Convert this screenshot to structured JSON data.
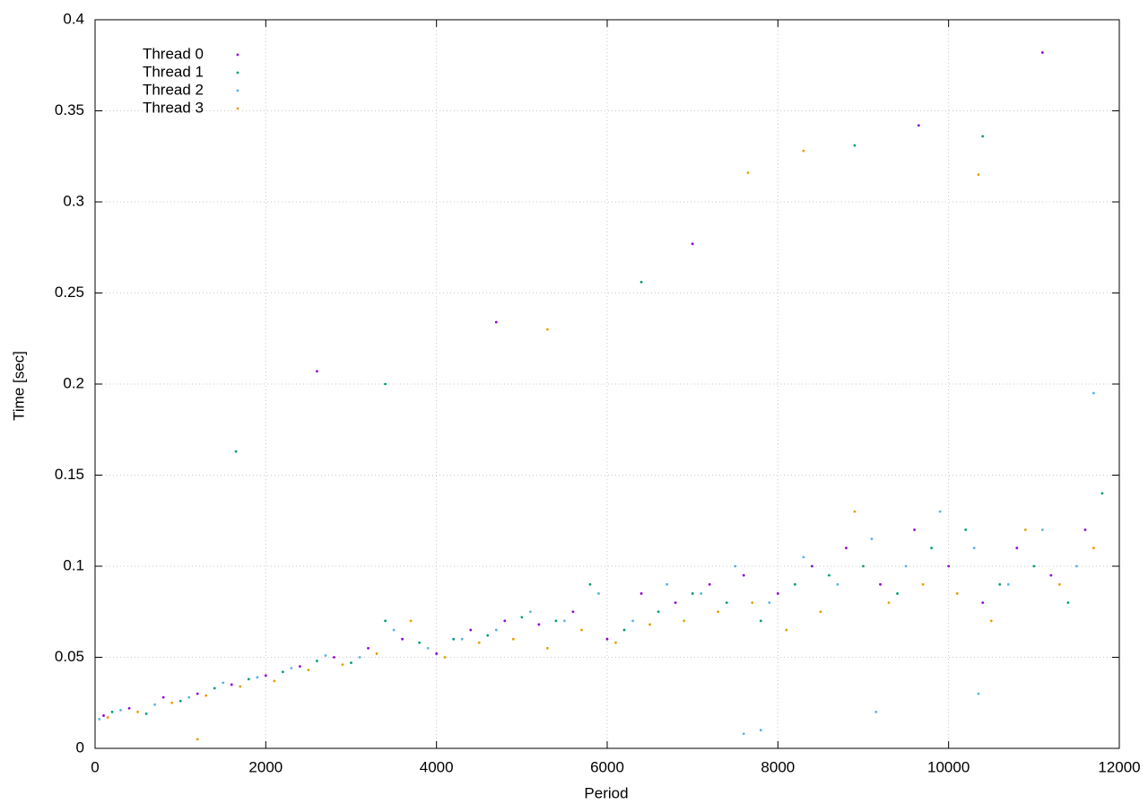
{
  "chart_data": {
    "type": "scatter",
    "x_label": "Period",
    "y_label": "Time [sec]",
    "xlim": [
      0,
      12000
    ],
    "ylim": [
      0,
      0.4
    ],
    "xticks": [
      0,
      2000,
      4000,
      6000,
      8000,
      10000,
      12000
    ],
    "yticks": [
      0,
      0.05,
      0.1,
      0.15,
      0.2,
      0.25,
      0.3,
      0.35,
      0.4
    ],
    "grid": true,
    "legend": "top-left",
    "series": [
      {
        "name": "Thread 0",
        "color": "#9400d3",
        "x": [
          100,
          400,
          800,
          1200,
          1600,
          2000,
          2400,
          2800,
          3200,
          3600,
          4000,
          4400,
          4800,
          5200,
          5600,
          6000,
          6400,
          6800,
          7200,
          7600,
          8000,
          8400,
          8800,
          9200,
          9600,
          10000,
          10400,
          10800,
          11200,
          11600,
          2600,
          4700,
          7000,
          9650,
          11100
        ],
        "y": [
          0.018,
          0.022,
          0.028,
          0.03,
          0.035,
          0.04,
          0.045,
          0.05,
          0.055,
          0.06,
          0.052,
          0.065,
          0.07,
          0.068,
          0.075,
          0.06,
          0.085,
          0.08,
          0.09,
          0.095,
          0.085,
          0.1,
          0.11,
          0.09,
          0.12,
          0.1,
          0.08,
          0.11,
          0.095,
          0.12,
          0.207,
          0.234,
          0.277,
          0.342,
          0.382
        ]
      },
      {
        "name": "Thread 1",
        "color": "#009e73",
        "x": [
          200,
          600,
          1000,
          1400,
          1800,
          2200,
          2600,
          3000,
          3400,
          3800,
          4200,
          4600,
          5000,
          5400,
          5800,
          6200,
          6600,
          7000,
          7400,
          7800,
          8200,
          8600,
          9000,
          9400,
          9800,
          10200,
          10600,
          11000,
          11400,
          11800,
          1650,
          3400,
          6400,
          8900,
          10400
        ],
        "y": [
          0.02,
          0.019,
          0.026,
          0.033,
          0.038,
          0.042,
          0.048,
          0.047,
          0.07,
          0.058,
          0.06,
          0.062,
          0.072,
          0.07,
          0.09,
          0.065,
          0.075,
          0.085,
          0.08,
          0.07,
          0.09,
          0.095,
          0.1,
          0.085,
          0.11,
          0.12,
          0.09,
          0.1,
          0.08,
          0.14,
          0.163,
          0.2,
          0.256,
          0.331,
          0.336
        ]
      },
      {
        "name": "Thread 2",
        "color": "#56b4e9",
        "x": [
          50,
          300,
          700,
          1100,
          1500,
          1900,
          2300,
          2700,
          3100,
          3500,
          3900,
          4300,
          4700,
          5100,
          5500,
          5900,
          6300,
          6700,
          7100,
          7500,
          7900,
          8300,
          8700,
          9100,
          9500,
          9900,
          10300,
          10700,
          11100,
          11500,
          7600,
          7800,
          9150,
          10350,
          11700
        ],
        "y": [
          0.016,
          0.021,
          0.024,
          0.028,
          0.036,
          0.039,
          0.044,
          0.051,
          0.05,
          0.065,
          0.055,
          0.06,
          0.065,
          0.075,
          0.07,
          0.085,
          0.07,
          0.09,
          0.085,
          0.1,
          0.08,
          0.105,
          0.09,
          0.115,
          0.1,
          0.13,
          0.11,
          0.09,
          0.12,
          0.1,
          0.008,
          0.01,
          0.02,
          0.03,
          0.195
        ]
      },
      {
        "name": "Thread 3",
        "color": "#e69f00",
        "x": [
          150,
          500,
          900,
          1300,
          1700,
          2100,
          2500,
          2900,
          3300,
          3700,
          4100,
          4500,
          4900,
          5300,
          5700,
          6100,
          6500,
          6900,
          7300,
          7700,
          8100,
          8500,
          8900,
          9300,
          9700,
          10100,
          10500,
          10900,
          11300,
          11700,
          1200,
          5300,
          7650,
          8300,
          10350
        ],
        "y": [
          0.017,
          0.02,
          0.025,
          0.029,
          0.034,
          0.037,
          0.043,
          0.046,
          0.052,
          0.07,
          0.05,
          0.058,
          0.06,
          0.055,
          0.065,
          0.058,
          0.068,
          0.07,
          0.075,
          0.08,
          0.065,
          0.075,
          0.13,
          0.08,
          0.09,
          0.085,
          0.07,
          0.12,
          0.09,
          0.11,
          0.005,
          0.23,
          0.316,
          0.328,
          0.315
        ]
      }
    ]
  }
}
